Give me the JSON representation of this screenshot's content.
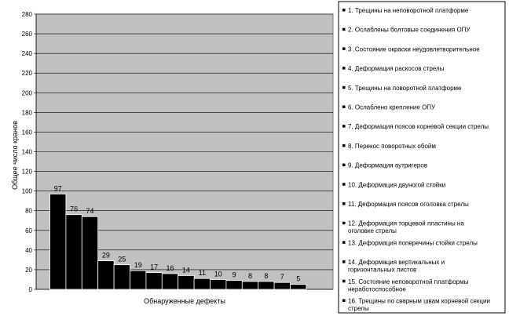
{
  "chart_data": {
    "type": "bar",
    "ylabel": "Общее число кранов",
    "xlabel": "Обнаруженные дефекты",
    "ylim": [
      0,
      280
    ],
    "yticks": [
      0,
      20,
      40,
      60,
      80,
      100,
      120,
      140,
      160,
      180,
      200,
      220,
      240,
      260,
      280
    ],
    "grid": true,
    "legend_placement": "right",
    "colors": {
      "plot_background": "#c0c0c0",
      "bar_fill": "#000000",
      "gridline": "#000000"
    },
    "values": [
      97,
      76,
      74,
      29,
      25,
      19,
      17,
      16,
      14,
      11,
      10,
      9,
      8,
      8,
      7,
      5
    ],
    "legend": [
      "1. Трещины на неповоротной платформе",
      "2. Ослаблены болтовые соединения ОПУ",
      "3 .Состояние окраски неудовлетворительное",
      "4. Деформация раскосов стрелы",
      "5. Трещины на поворотной платформе",
      "6. Ослаблено крепление ОПУ",
      "7. Деформация поясов корневой секции стрелы",
      "8. Перекос поворотных обойм",
      "9. Деформация аутригеров",
      "10. Деформация двуногой стойки",
      "11. Деформация поясов оголовка стрелы",
      "12. Деформация торцевой пластины на оголовке стрелы",
      "13. Деформация поперечины стойки стрелы",
      "14. Деформация вертикальных и горизонтальных листов",
      "15. Состояние неповоротной платформы неработоспособное",
      "16. Трещины по сварным швам корневой секции стрелы"
    ]
  }
}
